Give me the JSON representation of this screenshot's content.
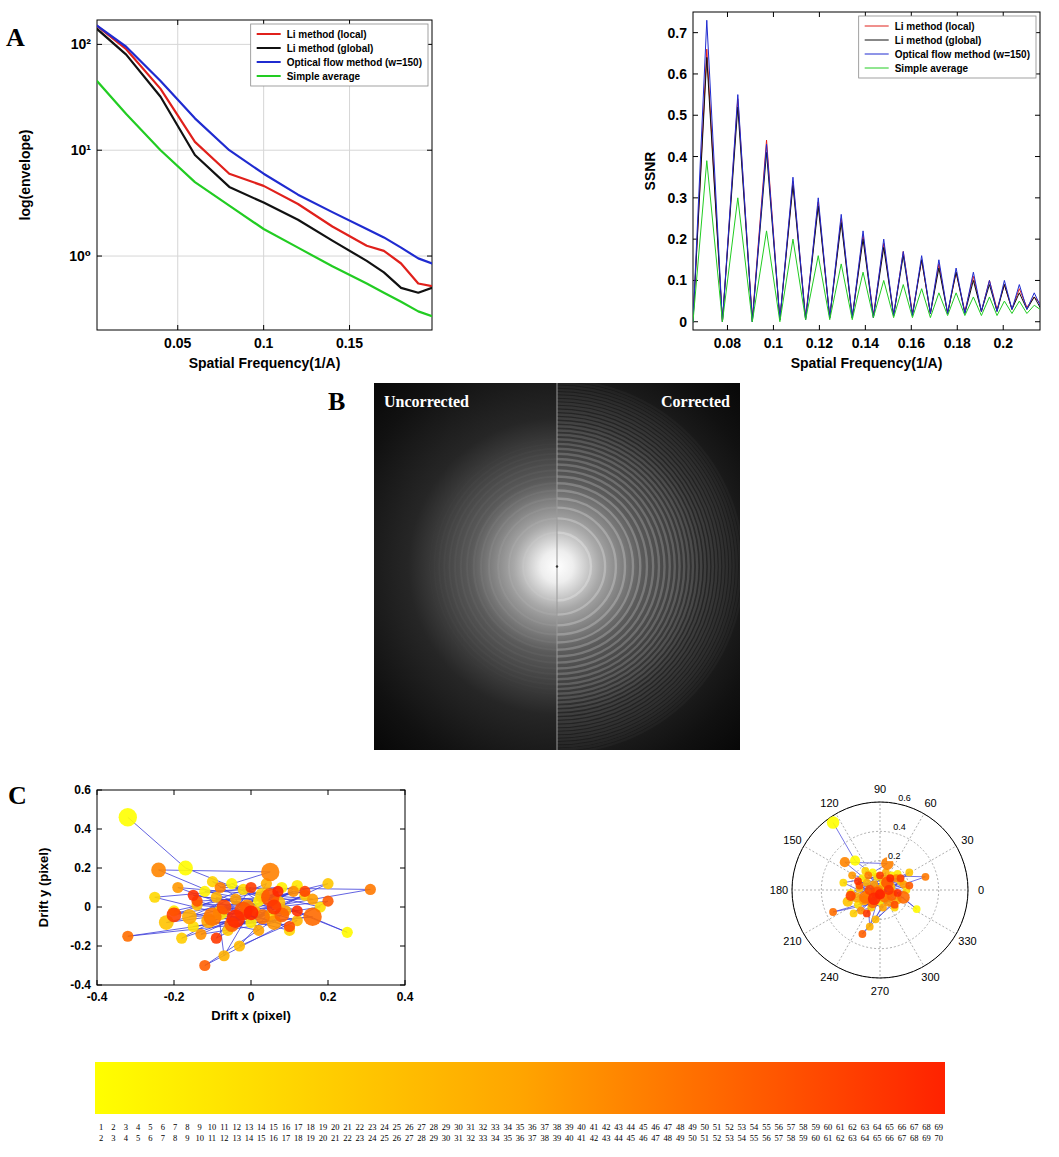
{
  "panel_letters": [
    "A",
    "B",
    "C"
  ],
  "spectrum_image": {
    "left_label": "Uncorrected",
    "right_label": "Corrected"
  },
  "chart_data": [
    {
      "type": "line",
      "x_label": "Spatial Frequency(1/A)",
      "y_label": "log(envelope)",
      "log": "y",
      "grid": true,
      "legend": "upper right",
      "x": [
        0.003,
        0.02,
        0.04,
        0.06,
        0.08,
        0.1,
        0.12,
        0.14,
        0.16,
        0.17,
        0.18,
        0.19,
        0.198
      ],
      "xlim": [
        0.003,
        0.198
      ],
      "xticks": [
        0.05,
        0.1,
        0.15
      ],
      "ylim": [
        0.2,
        170
      ],
      "yticks": [
        {
          "value": 1,
          "label": "10⁰"
        },
        {
          "value": 10,
          "label": "10¹"
        },
        {
          "value": 100,
          "label": "10²"
        }
      ],
      "series": [
        {
          "name": "Li method (local)",
          "color": "#e0201b",
          "values": [
            150,
            90,
            38,
            12,
            6,
            4.6,
            3.1,
            1.9,
            1.25,
            1.12,
            0.85,
            0.55,
            0.52
          ]
        },
        {
          "name": "Li method (global)",
          "color": "#111111",
          "values": [
            140,
            80,
            32,
            9,
            4.5,
            3.2,
            2.2,
            1.4,
            0.9,
            0.7,
            0.5,
            0.45,
            0.5
          ]
        },
        {
          "name": "Optical flow method (w=150)",
          "color": "#1f2bd0",
          "values": [
            150,
            95,
            45,
            20,
            10,
            6,
            3.8,
            2.6,
            1.8,
            1.5,
            1.2,
            0.95,
            0.85
          ]
        },
        {
          "name": "Simple average",
          "color": "#22cc22",
          "values": [
            45,
            22,
            10,
            5,
            3,
            1.8,
            1.2,
            0.8,
            0.55,
            0.45,
            0.37,
            0.3,
            0.27
          ]
        }
      ]
    },
    {
      "type": "line",
      "x_label": "Spatial Frequency(1/A)",
      "y_label": "SSNR",
      "grid": false,
      "legend": "upper right",
      "x": [
        0.065,
        0.071,
        0.0778,
        0.0845,
        0.0908,
        0.097,
        0.1028,
        0.1085,
        0.114,
        0.1195,
        0.1245,
        0.1295,
        0.1343,
        0.139,
        0.1435,
        0.148,
        0.1523,
        0.1565,
        0.1605,
        0.1645,
        0.1683,
        0.172,
        0.1758,
        0.1795,
        0.1833,
        0.187,
        0.1905,
        0.194,
        0.1973,
        0.2005,
        0.2038,
        0.207,
        0.2103,
        0.2135,
        0.216
      ],
      "xlim": [
        0.065,
        0.216
      ],
      "xticks": [
        0.08,
        0.1,
        0.12,
        0.14,
        0.16,
        0.18,
        0.2
      ],
      "ylim": [
        -0.02,
        0.75
      ],
      "yticks": [
        0,
        0.1,
        0.2,
        0.3,
        0.4,
        0.5,
        0.6,
        0.7
      ],
      "series": [
        {
          "name": "Li method (local)",
          "color": "#e0201b",
          "values": [
            0.0,
            0.66,
            0.0,
            0.54,
            0.005,
            0.44,
            0.005,
            0.34,
            0.01,
            0.29,
            0.01,
            0.25,
            0.01,
            0.21,
            0.015,
            0.19,
            0.015,
            0.17,
            0.02,
            0.15,
            0.02,
            0.14,
            0.02,
            0.12,
            0.025,
            0.11,
            0.025,
            0.1,
            0.03,
            0.09,
            0.03,
            0.08,
            0.035,
            0.06,
            0.045
          ]
        },
        {
          "name": "Li method (global)",
          "color": "#111111",
          "values": [
            0.0,
            0.64,
            0.0,
            0.52,
            0.0,
            0.41,
            0.005,
            0.33,
            0.005,
            0.28,
            0.01,
            0.24,
            0.01,
            0.2,
            0.01,
            0.18,
            0.015,
            0.16,
            0.015,
            0.15,
            0.02,
            0.13,
            0.02,
            0.12,
            0.02,
            0.1,
            0.025,
            0.09,
            0.025,
            0.09,
            0.03,
            0.07,
            0.03,
            0.06,
            0.035
          ]
        },
        {
          "name": "Optical flow method (w=150)",
          "color": "#1f2bd0",
          "values": [
            0.0,
            0.73,
            0.0,
            0.55,
            0.0,
            0.43,
            0.005,
            0.35,
            0.005,
            0.3,
            0.01,
            0.26,
            0.01,
            0.22,
            0.01,
            0.2,
            0.015,
            0.17,
            0.015,
            0.16,
            0.02,
            0.15,
            0.02,
            0.13,
            0.02,
            0.12,
            0.025,
            0.1,
            0.025,
            0.1,
            0.03,
            0.09,
            0.03,
            0.07,
            0.04
          ]
        },
        {
          "name": "Simple average",
          "color": "#22cc22",
          "values": [
            0.0,
            0.39,
            0.0,
            0.3,
            0.0,
            0.22,
            0.0,
            0.2,
            0.005,
            0.16,
            0.005,
            0.14,
            0.005,
            0.12,
            0.01,
            0.1,
            0.01,
            0.09,
            0.01,
            0.08,
            0.01,
            0.07,
            0.015,
            0.07,
            0.015,
            0.06,
            0.015,
            0.06,
            0.015,
            0.05,
            0.02,
            0.05,
            0.02,
            0.04,
            0.03
          ]
        }
      ]
    },
    {
      "type": "scatter",
      "x_label": "Drift x (pixel)",
      "y_label": "Drift y (pixel)",
      "grid": false,
      "color": "#3b3bd9",
      "marker": "circle",
      "line_style": "solid",
      "xlim": [
        -0.4,
        0.4
      ],
      "xticks": [
        -0.4,
        -0.2,
        0,
        0.2,
        0.4
      ],
      "ylim": [
        -0.4,
        0.6
      ],
      "yticks": [
        -0.4,
        -0.2,
        0,
        0.2,
        0.4,
        0.6
      ],
      "x": [
        -0.32,
        -0.17,
        0.25,
        -0.05,
        0.02,
        -0.12,
        0.08,
        -0.2,
        0.0,
        0.12,
        -0.08,
        0.05,
        -0.15,
        0.18,
        -0.02,
        -0.25,
        0.1,
        -0.1,
        0.03,
        -0.18,
        0.14,
        -0.06,
        0.2,
        -0.22,
        0.01,
        -0.14,
        0.07,
        -0.03,
        0.12,
        -0.09,
        -0.07,
        0.04,
        -0.16,
        0.09,
        -0.11,
        0.02,
        -0.04,
        0.16,
        -0.19,
        0.06,
        -0.13,
        0.11,
        -0.01,
        -0.24,
        0.05,
        -0.08,
        0.31,
        -0.1,
        0.03,
        -0.32,
        0.16,
        -0.05,
        0.08,
        -0.12,
        0.2,
        -0.02,
        0.05,
        -0.14,
        0.1,
        -0.07,
        0.14,
        -0.2,
        0.0,
        -0.09,
        0.06,
        -0.15,
        0.12,
        -0.04,
        0.07,
        0.0
      ],
      "values": [
        0.46,
        0.2,
        -0.13,
        0.12,
        0.03,
        0.08,
        0.1,
        -0.02,
        -0.08,
        0.11,
        -0.03,
        -0.04,
        -0.1,
        0.0,
        0.09,
        0.05,
        -0.12,
        0.13,
        0.06,
        -0.16,
        0.06,
        -0.12,
        0.12,
        -0.08,
        -0.02,
        0.01,
        0.02,
        -0.2,
        -0.07,
        0.05,
        -0.25,
        0.12,
        -0.05,
        -0.02,
        -0.07,
        -0.12,
        0.04,
        0.04,
        0.1,
        -0.08,
        -0.14,
        0.08,
        0.0,
        0.19,
        0.18,
        0.1,
        0.09,
        -0.05,
        -0.05,
        -0.15,
        -0.05,
        -0.09,
        -0.04,
        -0.3,
        0.03,
        -0.02,
        0.05,
        0.03,
        -0.1,
        0.0,
        0.08,
        -0.04,
        0.1,
        -0.16,
        0.0,
        0.06,
        -0.02,
        -0.06,
        0.08,
        -0.03
      ],
      "sizes": [
        4,
        3,
        2,
        2,
        2,
        2,
        2,
        2,
        2,
        2,
        3,
        2,
        2,
        2,
        2,
        2,
        2,
        2,
        3,
        2,
        2,
        2,
        2,
        3,
        2,
        2,
        3,
        2,
        2,
        2,
        2,
        2,
        3,
        2,
        3,
        2,
        2,
        2,
        2,
        3,
        2,
        2,
        3,
        3,
        4,
        2,
        2,
        4,
        3,
        2,
        4,
        3,
        3,
        2,
        2,
        4,
        4,
        2,
        2,
        3,
        2,
        3,
        2,
        2,
        3,
        2,
        2,
        4,
        2,
        3
      ],
      "colorbar_range": [
        1,
        70
      ],
      "colorbar_ticks": [
        [
          1,
          2,
          3,
          4,
          5,
          6,
          7,
          8,
          9,
          10,
          11,
          12,
          13,
          14,
          15,
          16,
          17,
          18,
          19,
          20,
          21,
          22,
          23,
          24,
          25,
          26,
          27,
          28,
          29,
          30,
          31,
          32,
          33,
          34,
          35,
          36,
          37,
          38,
          39,
          40,
          41,
          42,
          43,
          44,
          45,
          46,
          47,
          48,
          49,
          50,
          51,
          52,
          53,
          54,
          55,
          56,
          57,
          58,
          59,
          60,
          61,
          62,
          63,
          64,
          65,
          66,
          67,
          68,
          69
        ],
        [
          2,
          3,
          4,
          5,
          6,
          7,
          8,
          9,
          10,
          11,
          12,
          13,
          14,
          15,
          16,
          17,
          18,
          19,
          20,
          21,
          22,
          23,
          24,
          25,
          26,
          27,
          28,
          29,
          30,
          31,
          32,
          33,
          34,
          35,
          36,
          37,
          38,
          39,
          40,
          41,
          42,
          43,
          44,
          45,
          46,
          47,
          48,
          49,
          50,
          51,
          52,
          53,
          54,
          55,
          56,
          57,
          58,
          59,
          60,
          61,
          62,
          63,
          64,
          65,
          66,
          67,
          68,
          69,
          70
        ]
      ]
    },
    {
      "type": "polar",
      "grid": true,
      "xlim": [
        0,
        360
      ],
      "xticks": [
        0,
        30,
        60,
        90,
        120,
        150,
        180,
        210,
        240,
        270,
        300,
        330
      ],
      "ylim": [
        0,
        0.6
      ],
      "yticks": [
        0.2,
        0.4,
        0.6
      ]
    }
  ]
}
